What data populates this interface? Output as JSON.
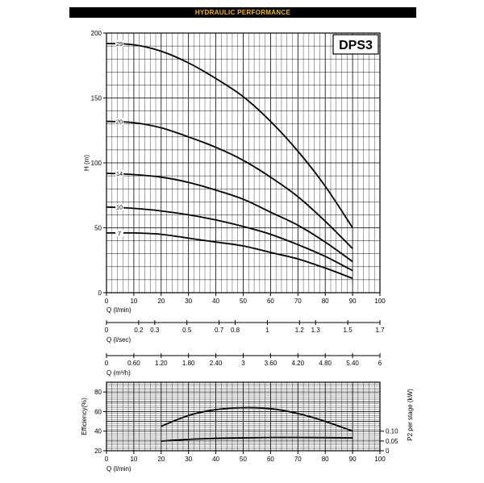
{
  "header": {
    "title": "HYDRAULIC PERFORMANCE"
  },
  "chart_data": [
    {
      "type": "line",
      "model_label": "DPS3",
      "xlabel": "Q (l/min)",
      "ylabel": "H (m)",
      "xlim": [
        0,
        100
      ],
      "ylim": [
        0,
        200
      ],
      "xticks": [
        0,
        10,
        20,
        30,
        40,
        50,
        60,
        70,
        80,
        90,
        100
      ],
      "yticks": [
        0,
        50,
        100,
        150,
        200
      ],
      "grid": true,
      "series": [
        {
          "name": "29",
          "x": [
            0,
            10,
            20,
            30,
            40,
            50,
            60,
            70,
            80,
            90
          ],
          "values": [
            192,
            191,
            186,
            177,
            165,
            151,
            132,
            109,
            82,
            50
          ]
        },
        {
          "name": "20",
          "x": [
            0,
            10,
            20,
            30,
            40,
            50,
            60,
            70,
            80,
            90
          ],
          "values": [
            132,
            131,
            127,
            120,
            112,
            102,
            89,
            74,
            55,
            34
          ]
        },
        {
          "name": "14",
          "x": [
            0,
            10,
            20,
            30,
            40,
            50,
            60,
            70,
            80,
            90
          ],
          "values": [
            92,
            91,
            89,
            85,
            79,
            72,
            62,
            52,
            39,
            24
          ]
        },
        {
          "name": "10",
          "x": [
            0,
            10,
            20,
            30,
            40,
            50,
            60,
            70,
            80,
            90
          ],
          "values": [
            66,
            65,
            63,
            60,
            56,
            51,
            45,
            37,
            28,
            17
          ]
        },
        {
          "name": "7",
          "x": [
            0,
            10,
            20,
            30,
            40,
            50,
            60,
            70,
            80,
            90
          ],
          "values": [
            46,
            46,
            45,
            42,
            39,
            36,
            31,
            26,
            19,
            11
          ]
        }
      ]
    },
    {
      "type": "axis",
      "xlabel": "Q (l/sec)",
      "xlim": [
        0,
        1.7
      ],
      "ticks": [
        {
          "value": 0,
          "label": "0"
        },
        {
          "value": 0.2,
          "label": "0.2"
        },
        {
          "value": 0.3,
          "label": "0.3"
        },
        {
          "value": 0.5,
          "label": "0.5"
        },
        {
          "value": 0.7,
          "label": "0.7"
        },
        {
          "value": 0.8,
          "label": "0.8"
        },
        {
          "value": 1,
          "label": "1"
        },
        {
          "value": 1.2,
          "label": "1.2"
        },
        {
          "value": 1.3,
          "label": "1.3"
        },
        {
          "value": 1.5,
          "label": "1.5"
        },
        {
          "value": 1.7,
          "label": "1.7"
        }
      ]
    },
    {
      "type": "axis",
      "xlabel": "Q (m³/h)",
      "xlim": [
        0,
        6
      ],
      "ticks": [
        {
          "value": 0,
          "label": "0"
        },
        {
          "value": 0.6,
          "label": "0.60"
        },
        {
          "value": 1.2,
          "label": "1.20"
        },
        {
          "value": 1.8,
          "label": "1.80"
        },
        {
          "value": 2.4,
          "label": "2.40"
        },
        {
          "value": 3,
          "label": "3"
        },
        {
          "value": 3.6,
          "label": "3.60"
        },
        {
          "value": 4.2,
          "label": "4.20"
        },
        {
          "value": 4.8,
          "label": "4.80"
        },
        {
          "value": 5.4,
          "label": "5.40"
        },
        {
          "value": 6,
          "label": "6"
        }
      ]
    },
    {
      "type": "line",
      "xlabel": "Q (l/min)",
      "ylabel": "Efficiency(%)",
      "y2label": "P2 per stage (kW)",
      "xlim": [
        0,
        100
      ],
      "ylim": [
        20,
        90
      ],
      "xticks": [
        0,
        10,
        20,
        30,
        40,
        50,
        60,
        70,
        80,
        90,
        100
      ],
      "yticks": [
        20,
        40,
        60,
        80
      ],
      "y2ticks": [
        {
          "value": 0,
          "label": "0"
        },
        {
          "value": 0.05,
          "label": "0.05"
        },
        {
          "value": 0.1,
          "label": "0.10"
        }
      ],
      "y2lim_in_y1": {
        "0": 20,
        "0.05": 30,
        "0.10": 40
      },
      "grid": true,
      "series": [
        {
          "name": "",
          "axis": "left",
          "x": [
            20,
            30,
            40,
            50,
            60,
            70,
            80,
            90
          ],
          "values": [
            45,
            56,
            62,
            64,
            63,
            58,
            50,
            40
          ]
        },
        {
          "name": "",
          "axis": "right",
          "x": [
            20,
            30,
            40,
            50,
            60,
            70,
            80,
            90
          ],
          "values": [
            0.049,
            0.058,
            0.063,
            0.066,
            0.068,
            0.068,
            0.067,
            0.066
          ]
        }
      ]
    }
  ]
}
